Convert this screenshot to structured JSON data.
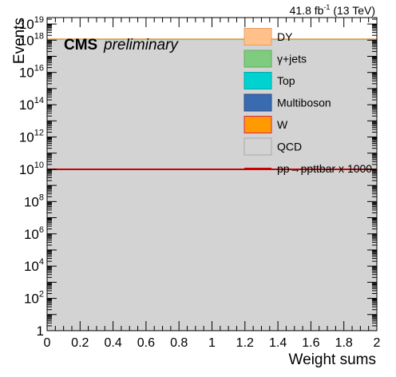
{
  "chart_data": {
    "type": "bar",
    "lumi_label": "41.8 fb",
    "lumi_sup": "-1",
    "lumi_suffix": " (13 TeV)",
    "cms_label": "CMS",
    "cms_sub": "preliminary",
    "xlabel": "Weight sums",
    "ylabel": "Events",
    "xlim": [
      0,
      2
    ],
    "ylim_log10": [
      0,
      19.4
    ],
    "y_log_scale": true,
    "x_ticks": [
      "0",
      "0.2",
      "0.4",
      "0.6",
      "0.8",
      "1",
      "1.2",
      "1.4",
      "1.6",
      "1.8",
      "2"
    ],
    "x_tick_values": [
      0,
      0.2,
      0.4,
      0.6,
      0.8,
      1.0,
      1.2,
      1.4,
      1.6,
      1.8,
      2.0
    ],
    "y_ticks": [
      {
        "base": "1",
        "exp": "",
        "value_log10": 0
      },
      {
        "base": "10",
        "exp": "2",
        "value_log10": 2
      },
      {
        "base": "10",
        "exp": "4",
        "value_log10": 4
      },
      {
        "base": "10",
        "exp": "6",
        "value_log10": 6
      },
      {
        "base": "10",
        "exp": "8",
        "value_log10": 8
      },
      {
        "base": "10",
        "exp": "10",
        "value_log10": 10
      },
      {
        "base": "10",
        "exp": "12",
        "value_log10": 12
      },
      {
        "base": "10",
        "exp": "14",
        "value_log10": 14
      },
      {
        "base": "10",
        "exp": "16",
        "value_log10": 16
      },
      {
        "base": "10",
        "exp": "18",
        "value_log10": 18
      },
      {
        "base": "10",
        "exp": "19",
        "value_log10": 19
      }
    ],
    "stack_log10": {
      "x": [
        0,
        2
      ],
      "qcd_top_log10": 18.0,
      "gjets_top_log10": 18.08
    },
    "series": [
      {
        "name": "DY",
        "fill": "#ffc08a",
        "stroke": "#e8a060",
        "style": "box"
      },
      {
        "name": "γ+jets",
        "fill": "#7fcc7f",
        "stroke": "#5fae5f",
        "style": "box"
      },
      {
        "name": "Top",
        "fill": "#00d2d2",
        "stroke": "#00aaaa",
        "style": "box"
      },
      {
        "name": "Multiboson",
        "fill": "#3a6ab0",
        "stroke": "#2a4f88",
        "style": "box"
      },
      {
        "name": "W",
        "fill": "#ff9a00",
        "stroke": "#e01f5a",
        "style": "box"
      },
      {
        "name": "QCD",
        "fill": "#d3d3d3",
        "stroke": "#aaaaaa",
        "style": "box"
      },
      {
        "name": "pp→ppttbar x 1000",
        "fill": "none",
        "stroke": "#cc0000",
        "style": "line",
        "value_log10": 10.0
      }
    ],
    "legend_position": "top-right"
  }
}
